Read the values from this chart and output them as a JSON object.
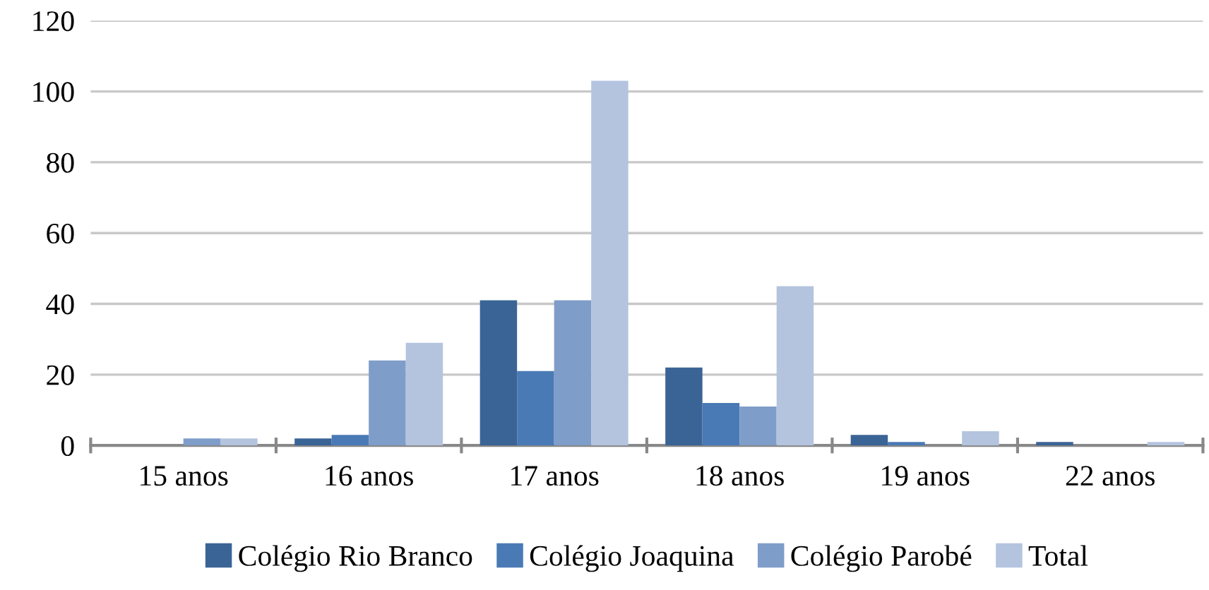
{
  "chart_data": {
    "type": "bar",
    "categories": [
      "15 anos",
      "16 anos",
      "17 anos",
      "18 anos",
      "19 anos",
      "22 anos"
    ],
    "series": [
      {
        "name": "Colégio Rio Branco",
        "color": "#3b6496",
        "values": [
          0,
          2,
          41,
          22,
          3,
          1
        ]
      },
      {
        "name": "Colégio Joaquina",
        "color": "#4a7ab5",
        "values": [
          0,
          3,
          21,
          12,
          1,
          0
        ]
      },
      {
        "name": "Colégio Parobé",
        "color": "#7f9dc9",
        "values": [
          2,
          24,
          41,
          11,
          0,
          0
        ]
      },
      {
        "name": "Total",
        "color": "#b4c4df",
        "values": [
          2,
          29,
          103,
          45,
          4,
          1
        ]
      }
    ],
    "ylim": [
      0,
      120
    ],
    "yticks": [
      0,
      20,
      40,
      60,
      80,
      100,
      120
    ],
    "grid": "y",
    "legend": "bottom"
  }
}
